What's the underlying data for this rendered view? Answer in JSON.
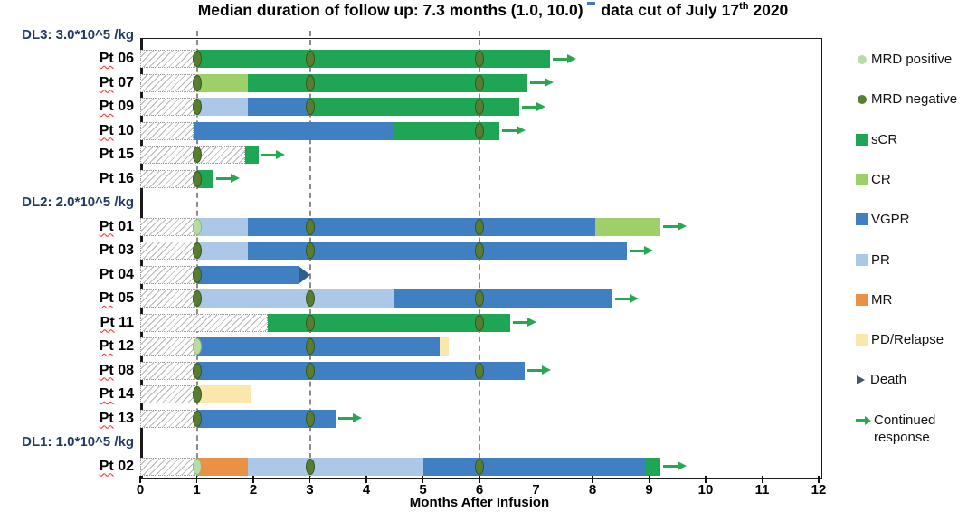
{
  "title": {
    "text_a": "Median duration of follow up: 7.3 months (1.0, 10.0)",
    "text_b": " data cut of July 17",
    "superscript": "th",
    "text_c": " 2020",
    "annotation_tick": true
  },
  "chart_data": {
    "type": "bar",
    "subtype": "swimmer-plot",
    "xlabel": "Months After Infusion",
    "xlim": [
      0,
      12
    ],
    "x_ticks": [
      0,
      1,
      2,
      3,
      4,
      5,
      6,
      7,
      8,
      9,
      10,
      11,
      12
    ],
    "grid": "dashed-verticals",
    "gridlines": [
      {
        "x": 1,
        "color_key": "gridline_gray"
      },
      {
        "x": 3,
        "color_key": "gridline_gray"
      },
      {
        "x": 6,
        "color_key": "gridline_blue"
      }
    ],
    "colors": {
      "sCR": "#1ea654",
      "CR": "#9fcf69",
      "VGPR": "#4080c2",
      "PR": "#abc8e8",
      "MR": "#eb9146",
      "PD": "#fae7ab",
      "death": "#2f5d8f",
      "death_legend": "#44546a",
      "mrd_positive": "#b9dba4",
      "mrd_positive_border": "#8fba72",
      "mrd_negative": "#567d32",
      "mrd_negative_border": "#3a571f",
      "arrow": "#27a750",
      "gridline_gray": "#8c8c8c",
      "gridline_blue": "#5b9bd5",
      "dose_label": "#1f3864",
      "annotation_tick": "#4472c4"
    },
    "groups": [
      {
        "label": "DL3: 3.0*10^5 /kg",
        "patients": [
          {
            "id": "Pt 06",
            "misspell_underline": true,
            "segments": [
              {
                "type": "pre",
                "start": 0,
                "end": 1
              },
              {
                "type": "sCR",
                "start": 1,
                "end": 7.25
              }
            ],
            "markers": [
              {
                "x": 1,
                "mrd": "negative"
              },
              {
                "x": 3,
                "mrd": "negative"
              },
              {
                "x": 6,
                "mrd": "negative"
              }
            ],
            "continued_response": true
          },
          {
            "id": "Pt 07",
            "misspell_underline": true,
            "segments": [
              {
                "type": "pre",
                "start": 0,
                "end": 1
              },
              {
                "type": "CR",
                "start": 1,
                "end": 1.9
              },
              {
                "type": "sCR",
                "start": 1.9,
                "end": 6.85
              }
            ],
            "markers": [
              {
                "x": 1,
                "mrd": "negative"
              },
              {
                "x": 3,
                "mrd": "negative"
              },
              {
                "x": 6,
                "mrd": "negative"
              }
            ],
            "continued_response": true
          },
          {
            "id": "Pt 09",
            "misspell_underline": true,
            "segments": [
              {
                "type": "pre",
                "start": 0,
                "end": 1
              },
              {
                "type": "PR",
                "start": 1,
                "end": 1.9
              },
              {
                "type": "VGPR",
                "start": 1.9,
                "end": 3.0
              },
              {
                "type": "sCR",
                "start": 3.0,
                "end": 6.7
              }
            ],
            "markers": [
              {
                "x": 1,
                "mrd": "negative"
              },
              {
                "x": 3,
                "mrd": "negative"
              },
              {
                "x": 6,
                "mrd": "negative"
              }
            ],
            "continued_response": true
          },
          {
            "id": "Pt 10",
            "misspell_underline": true,
            "segments": [
              {
                "type": "pre",
                "start": 0,
                "end": 0.95
              },
              {
                "type": "VGPR",
                "start": 0.95,
                "end": 4.5
              },
              {
                "type": "sCR",
                "start": 4.5,
                "end": 6.35
              }
            ],
            "markers": [
              {
                "x": 6,
                "mrd": "negative"
              }
            ],
            "continued_response": true
          },
          {
            "id": "Pt 15",
            "misspell_underline": false,
            "segments": [
              {
                "type": "pre",
                "start": 0,
                "end": 1.85
              },
              {
                "type": "sCR",
                "start": 1.85,
                "end": 2.1
              }
            ],
            "markers": [
              {
                "x": 1,
                "mrd": "negative"
              }
            ],
            "continued_response": true
          },
          {
            "id": "Pt 16",
            "misspell_underline": false,
            "segments": [
              {
                "type": "pre",
                "start": 0,
                "end": 1
              },
              {
                "type": "sCR",
                "start": 1,
                "end": 1.3
              }
            ],
            "markers": [
              {
                "x": 1,
                "mrd": "negative"
              }
            ],
            "continued_response": true
          }
        ]
      },
      {
        "label": "DL2: 2.0*10^5 /kg",
        "patients": [
          {
            "id": "Pt 01",
            "misspell_underline": true,
            "segments": [
              {
                "type": "pre",
                "start": 0,
                "end": 1
              },
              {
                "type": "PR",
                "start": 1,
                "end": 1.9
              },
              {
                "type": "VGPR",
                "start": 1.9,
                "end": 8.05
              },
              {
                "type": "CR",
                "start": 8.05,
                "end": 9.2
              }
            ],
            "markers": [
              {
                "x": 1,
                "mrd": "positive"
              },
              {
                "x": 3,
                "mrd": "negative"
              },
              {
                "x": 6,
                "mrd": "negative"
              }
            ],
            "continued_response": true
          },
          {
            "id": "Pt 03",
            "misspell_underline": false,
            "segments": [
              {
                "type": "pre",
                "start": 0,
                "end": 1
              },
              {
                "type": "PR",
                "start": 1,
                "end": 1.9
              },
              {
                "type": "VGPR",
                "start": 1.9,
                "end": 8.6
              }
            ],
            "markers": [
              {
                "x": 1,
                "mrd": "negative"
              },
              {
                "x": 3,
                "mrd": "negative"
              },
              {
                "x": 6,
                "mrd": "negative"
              }
            ],
            "continued_response": true
          },
          {
            "id": "Pt 04",
            "misspell_underline": false,
            "segments": [
              {
                "type": "pre",
                "start": 0,
                "end": 1
              },
              {
                "type": "VGPR",
                "start": 1,
                "end": 2.8
              }
            ],
            "markers": [
              {
                "x": 1,
                "mrd": "negative"
              }
            ],
            "death_at": 2.8,
            "continued_response": false
          },
          {
            "id": "Pt 05",
            "misspell_underline": true,
            "segments": [
              {
                "type": "pre",
                "start": 0,
                "end": 1
              },
              {
                "type": "PR",
                "start": 1,
                "end": 4.5
              },
              {
                "type": "VGPR",
                "start": 4.5,
                "end": 8.35
              }
            ],
            "markers": [
              {
                "x": 1,
                "mrd": "negative"
              },
              {
                "x": 3,
                "mrd": "negative"
              },
              {
                "x": 6,
                "mrd": "negative"
              }
            ],
            "continued_response": true
          },
          {
            "id": "Pt 11",
            "misspell_underline": true,
            "segments": [
              {
                "type": "pre",
                "start": 0,
                "end": 2.25
              },
              {
                "type": "sCR",
                "start": 2.25,
                "end": 6.55
              }
            ],
            "markers": [
              {
                "x": 3,
                "mrd": "negative"
              },
              {
                "x": 6,
                "mrd": "negative"
              }
            ],
            "continued_response": true
          },
          {
            "id": "Pt 12",
            "misspell_underline": true,
            "segments": [
              {
                "type": "pre",
                "start": 0,
                "end": 1
              },
              {
                "type": "VGPR",
                "start": 1,
                "end": 5.3
              },
              {
                "type": "PD",
                "start": 5.3,
                "end": 5.45
              }
            ],
            "markers": [
              {
                "x": 1,
                "mrd": "positive"
              },
              {
                "x": 3,
                "mrd": "negative"
              }
            ],
            "continued_response": false
          },
          {
            "id": "Pt 08",
            "misspell_underline": true,
            "segments": [
              {
                "type": "pre",
                "start": 0,
                "end": 1
              },
              {
                "type": "VGPR",
                "start": 1,
                "end": 6.8
              }
            ],
            "markers": [
              {
                "x": 1,
                "mrd": "negative"
              },
              {
                "x": 3,
                "mrd": "negative"
              },
              {
                "x": 6,
                "mrd": "negative"
              }
            ],
            "continued_response": true
          },
          {
            "id": "Pt 14",
            "misspell_underline": true,
            "segments": [
              {
                "type": "pre",
                "start": 0,
                "end": 1
              },
              {
                "type": "PD",
                "start": 1,
                "end": 1.95
              }
            ],
            "markers": [
              {
                "x": 1,
                "mrd": "negative"
              }
            ],
            "continued_response": false
          },
          {
            "id": "Pt 13",
            "misspell_underline": true,
            "segments": [
              {
                "type": "pre",
                "start": 0,
                "end": 1
              },
              {
                "type": "VGPR",
                "start": 1,
                "end": 3.45
              }
            ],
            "markers": [
              {
                "x": 1,
                "mrd": "negative"
              },
              {
                "x": 3,
                "mrd": "negative"
              }
            ],
            "continued_response": true
          }
        ]
      },
      {
        "label": "DL1: 1.0*10^5 /kg",
        "patients": [
          {
            "id": "Pt 02",
            "misspell_underline": true,
            "segments": [
              {
                "type": "pre",
                "start": 0,
                "end": 1
              },
              {
                "type": "MR",
                "start": 1,
                "end": 1.9
              },
              {
                "type": "PR",
                "start": 1.9,
                "end": 5.0
              },
              {
                "type": "VGPR",
                "start": 5.0,
                "end": 8.95
              },
              {
                "type": "sCR",
                "start": 8.95,
                "end": 9.2
              }
            ],
            "markers": [
              {
                "x": 1,
                "mrd": "positive"
              },
              {
                "x": 3,
                "mrd": "negative"
              },
              {
                "x": 6,
                "mrd": "negative"
              }
            ],
            "continued_response": true
          }
        ]
      }
    ],
    "legend": [
      {
        "label": "MRD positive",
        "shape": "circle",
        "color_key": "mrd_positive"
      },
      {
        "label": "MRD negative",
        "shape": "circle",
        "color_key": "mrd_negative"
      },
      {
        "label": "sCR",
        "shape": "square",
        "color_key": "sCR"
      },
      {
        "label": "CR",
        "shape": "square",
        "color_key": "CR"
      },
      {
        "label": "VGPR",
        "shape": "square",
        "color_key": "VGPR"
      },
      {
        "label": "PR",
        "shape": "square",
        "color_key": "PR"
      },
      {
        "label": "MR",
        "shape": "square",
        "color_key": "MR"
      },
      {
        "label": "PD/Relapse",
        "shape": "square",
        "color_key": "PD"
      },
      {
        "label": "Death",
        "shape": "triangle",
        "color_key": "death_legend"
      },
      {
        "label": "Continued response",
        "shape": "arrow",
        "color_key": "arrow"
      }
    ]
  }
}
